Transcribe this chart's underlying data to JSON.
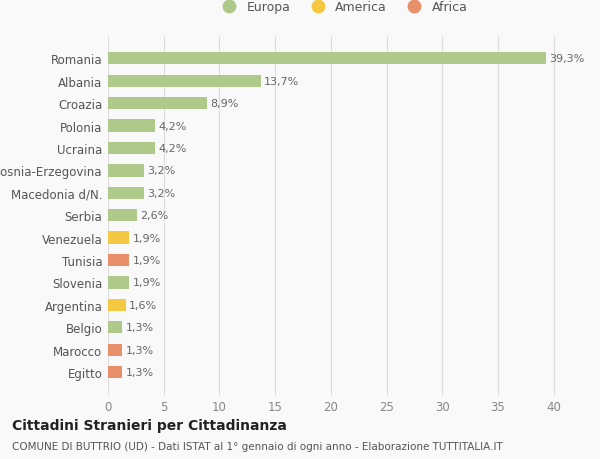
{
  "categories": [
    "Romania",
    "Albania",
    "Croazia",
    "Polonia",
    "Ucraina",
    "Bosnia-Erzegovina",
    "Macedonia d/N.",
    "Serbia",
    "Venezuela",
    "Tunisia",
    "Slovenia",
    "Argentina",
    "Belgio",
    "Marocco",
    "Egitto"
  ],
  "values": [
    39.3,
    13.7,
    8.9,
    4.2,
    4.2,
    3.2,
    3.2,
    2.6,
    1.9,
    1.9,
    1.9,
    1.6,
    1.3,
    1.3,
    1.3
  ],
  "labels": [
    "39,3%",
    "13,7%",
    "8,9%",
    "4,2%",
    "4,2%",
    "3,2%",
    "3,2%",
    "2,6%",
    "1,9%",
    "1,9%",
    "1,9%",
    "1,6%",
    "1,3%",
    "1,3%",
    "1,3%"
  ],
  "bar_colors": [
    "#aec98a",
    "#aec98a",
    "#aec98a",
    "#aec98a",
    "#aec98a",
    "#aec98a",
    "#aec98a",
    "#aec98a",
    "#f5c842",
    "#e8906a",
    "#aec98a",
    "#f5c842",
    "#aec98a",
    "#e8906a",
    "#e8906a"
  ],
  "legend_labels": [
    "Europa",
    "America",
    "Africa"
  ],
  "legend_colors": [
    "#aec98a",
    "#f5c842",
    "#e8906a"
  ],
  "xlim": [
    0,
    42
  ],
  "xticks": [
    0,
    5,
    10,
    15,
    20,
    25,
    30,
    35,
    40
  ],
  "title": "Cittadini Stranieri per Cittadinanza",
  "subtitle": "COMUNE DI BUTTRIO (UD) - Dati ISTAT al 1° gennaio di ogni anno - Elaborazione TUTTITALIA.IT",
  "bg_color": "#f9f9f9",
  "grid_color": "#dddddd",
  "bar_height": 0.55,
  "label_fontsize": 8,
  "ytick_fontsize": 8.5,
  "xtick_fontsize": 8.5,
  "title_fontsize": 10,
  "subtitle_fontsize": 7.5
}
